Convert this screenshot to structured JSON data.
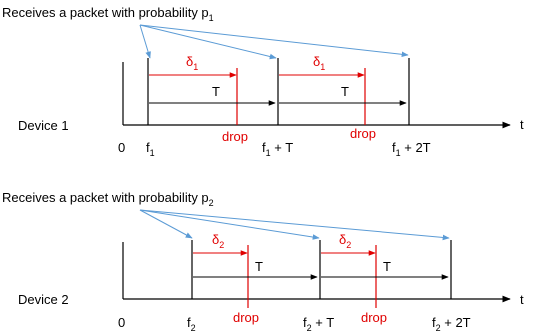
{
  "colors": {
    "axis": "#000000",
    "drop": "#e00000",
    "delta": "#e00000",
    "receive": "#5b9bd5"
  },
  "panel1": {
    "caption": {
      "main": "Receives a packet with probability p",
      "sub": "1"
    },
    "device_label": "Device 1",
    "axis_label": "t",
    "origin_label": "0",
    "tick_labels": [
      {
        "main": "f",
        "sub": "1",
        "suffix": ""
      },
      {
        "main": "f",
        "sub": "1",
        "suffix": " + T"
      },
      {
        "main": "f",
        "sub": "1",
        "suffix": " + 2T"
      }
    ],
    "delta_label": {
      "main": "δ",
      "sub": "1"
    },
    "period_label": "T",
    "drop_label": "drop"
  },
  "panel2": {
    "caption": {
      "main": "Receives a packet with probability p",
      "sub": "2"
    },
    "device_label": "Device 2",
    "axis_label": "t",
    "origin_label": "0",
    "tick_labels": [
      {
        "main": "f",
        "sub": "2",
        "suffix": ""
      },
      {
        "main": "f",
        "sub": "2",
        "suffix": " + T"
      },
      {
        "main": "f",
        "sub": "2",
        "suffix": " + 2T"
      }
    ],
    "delta_label": {
      "main": "δ",
      "sub": "2"
    },
    "period_label": "T",
    "drop_label": "drop"
  }
}
